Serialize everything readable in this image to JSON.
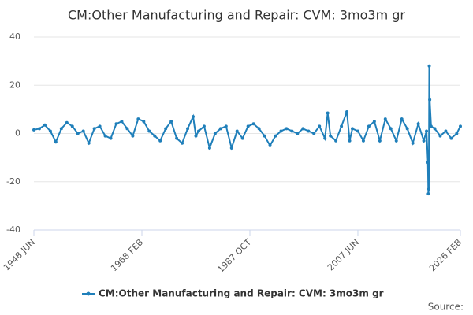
{
  "chart_data": {
    "type": "line",
    "title": "CM:Other Manufacturing and Repair: CVM: 3mo3m gr",
    "x": [
      "1948 JUN",
      "1949 JUN",
      "1950 JUN",
      "1951 JUN",
      "1952 JUN",
      "1953 JUN",
      "1954 JUN",
      "1955 JUN",
      "1956 JUN",
      "1957 JUN",
      "1958 JUN",
      "1959 JUN",
      "1960 JUN",
      "1961 JUN",
      "1962 JUN",
      "1963 JUN",
      "1964 JUN",
      "1965 JUN",
      "1966 JUN",
      "1967 JUN",
      "1968 JUN",
      "1969 JUN",
      "1970 JUN",
      "1971 JUN",
      "1972 JUN",
      "1973 JUN",
      "1974 JUN",
      "1975 JUN",
      "1976 JUN",
      "1977 JUN",
      "1977 DEC",
      "1978 JUN",
      "1979 JUN",
      "1980 JUN",
      "1981 JUN",
      "1982 JUN",
      "1983 JUN",
      "1984 JUN",
      "1985 JUN",
      "1986 JUN",
      "1987 JUN",
      "1988 JUN",
      "1989 JUN",
      "1990 JUN",
      "1991 JUN",
      "1992 JUN",
      "1993 JUN",
      "1994 JUN",
      "1995 JUN",
      "1996 JUN",
      "1997 JUN",
      "1998 JUN",
      "1999 JUN",
      "2000 JUN",
      "2001 JUN",
      "2001 DEC",
      "2002 JUN",
      "2003 JUN",
      "2004 JUN",
      "2005 JUN",
      "2005 DEC",
      "2006 JUN",
      "2007 JUN",
      "2008 JUN",
      "2009 JUN",
      "2010 JUN",
      "2011 JUN",
      "2012 JUN",
      "2013 JUN",
      "2014 JUN",
      "2015 JUN",
      "2016 JUN",
      "2017 JUN",
      "2018 JUN",
      "2019 JUN",
      "2019 DEC",
      "2020 MAR",
      "2020 APR",
      "2020 MAY",
      "2020 JUN",
      "2020 JUL",
      "2020 OCT",
      "2021 JUN",
      "2022 JUN",
      "2023 JUN",
      "2024 JUN",
      "2025 JUN",
      "2026 FEB"
    ],
    "series": [
      {
        "name": "CM:Other Manufacturing and Repair: CVM: 3mo3m gr",
        "color": "#1f7fba",
        "values": [
          1.5,
          2,
          3.5,
          1,
          -3.5,
          2,
          4.5,
          3,
          0,
          1,
          -4,
          2,
          3,
          -1,
          -2,
          4,
          5,
          2,
          -1,
          6,
          5,
          1,
          -1,
          -3,
          2,
          5,
          -2,
          -4,
          2,
          7,
          -1,
          1,
          3,
          -6,
          0,
          2,
          3,
          -6,
          1,
          -2,
          3,
          4,
          2,
          -1,
          -5,
          -1,
          1,
          2,
          1,
          0,
          2,
          1,
          0,
          3,
          -2,
          8.5,
          -1,
          -3,
          3,
          9,
          -3,
          2,
          1,
          -3,
          3,
          5,
          -3,
          6,
          2,
          -3,
          6,
          2,
          -4,
          4,
          -3,
          1,
          -12,
          -25,
          -23,
          28,
          14,
          3,
          2,
          -1,
          1,
          -2,
          0,
          3
        ]
      }
    ],
    "xlim": [
      "1948 JUN",
      "2026 FEB"
    ],
    "xticks": [
      "1948 JUN",
      "1968 FEB",
      "1987 OCT",
      "2007 JUN",
      "2026 FEB"
    ],
    "ylim": [
      -40,
      40
    ],
    "yticks": [
      -40,
      -20,
      0,
      20,
      40
    ],
    "grid": true,
    "legend": "bottom",
    "source": "Source:"
  }
}
